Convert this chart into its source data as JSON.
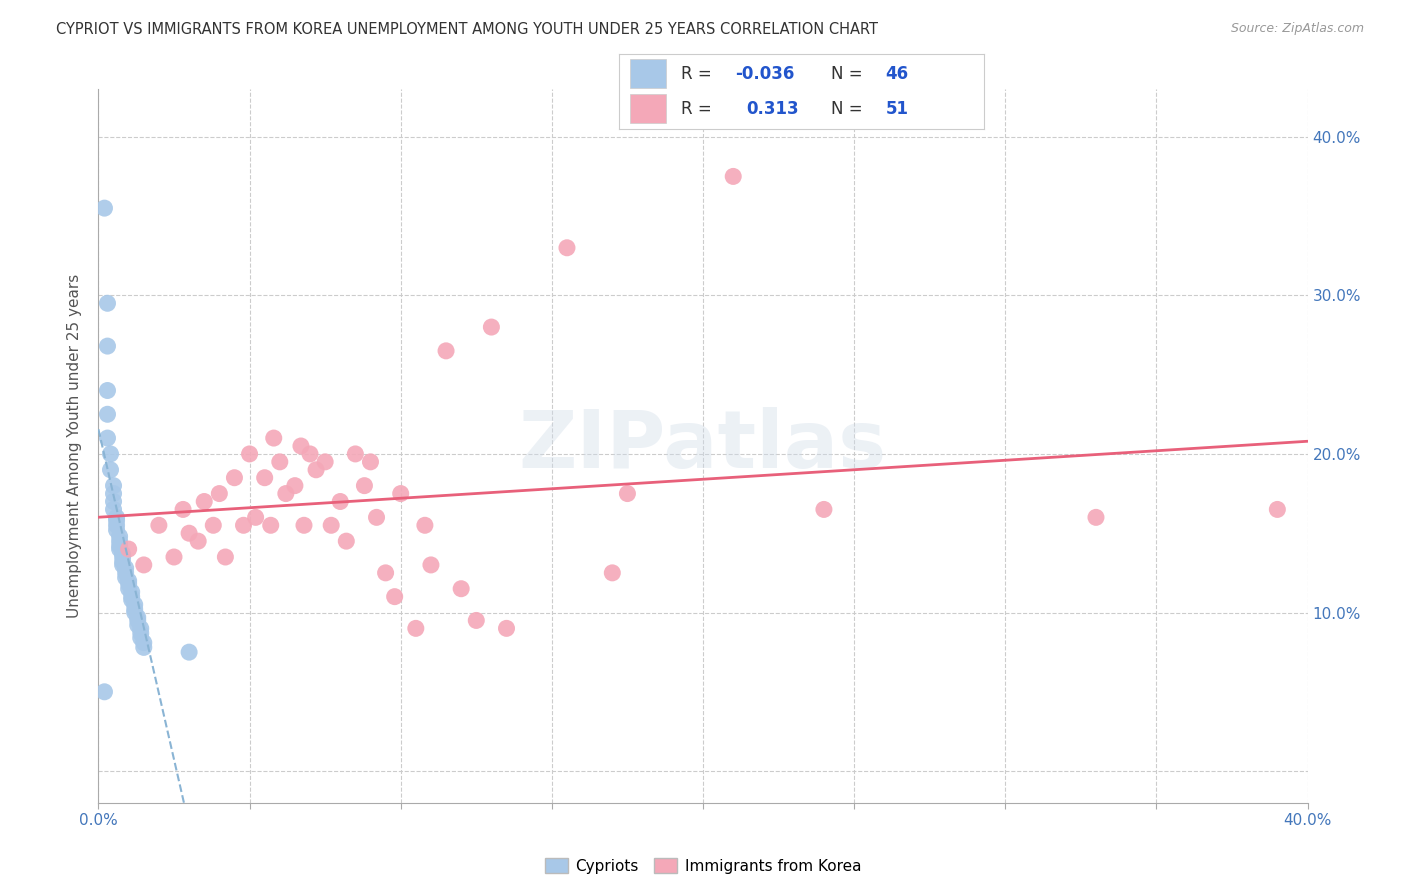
{
  "title": "CYPRIOT VS IMMIGRANTS FROM KOREA UNEMPLOYMENT AMONG YOUTH UNDER 25 YEARS CORRELATION CHART",
  "source": "Source: ZipAtlas.com",
  "ylabel": "Unemployment Among Youth under 25 years",
  "xlim": [
    0.0,
    0.4
  ],
  "ylim": [
    -0.02,
    0.43
  ],
  "yticks": [
    0.0,
    0.1,
    0.2,
    0.3,
    0.4
  ],
  "ytick_labels": [
    "",
    "10.0%",
    "20.0%",
    "30.0%",
    "40.0%"
  ],
  "xticks": [
    0.0,
    0.05,
    0.1,
    0.15,
    0.2,
    0.25,
    0.3,
    0.35,
    0.4
  ],
  "legend_r_cypriot": "-0.036",
  "legend_n_cypriot": "46",
  "legend_r_korea": "0.313",
  "legend_n_korea": "51",
  "cypriot_color": "#a8c8e8",
  "korea_color": "#f4a8b8",
  "cypriot_line_color": "#8ab4d4",
  "korea_line_color": "#e8607a",
  "watermark": "ZIPatlas",
  "cypriot_points": [
    [
      0.002,
      0.355
    ],
    [
      0.003,
      0.295
    ],
    [
      0.003,
      0.268
    ],
    [
      0.003,
      0.24
    ],
    [
      0.003,
      0.225
    ],
    [
      0.003,
      0.21
    ],
    [
      0.004,
      0.2
    ],
    [
      0.004,
      0.19
    ],
    [
      0.005,
      0.18
    ],
    [
      0.005,
      0.175
    ],
    [
      0.005,
      0.17
    ],
    [
      0.005,
      0.165
    ],
    [
      0.006,
      0.16
    ],
    [
      0.006,
      0.158
    ],
    [
      0.006,
      0.155
    ],
    [
      0.006,
      0.152
    ],
    [
      0.007,
      0.148
    ],
    [
      0.007,
      0.145
    ],
    [
      0.007,
      0.142
    ],
    [
      0.007,
      0.14
    ],
    [
      0.008,
      0.137
    ],
    [
      0.008,
      0.135
    ],
    [
      0.008,
      0.132
    ],
    [
      0.008,
      0.13
    ],
    [
      0.009,
      0.128
    ],
    [
      0.009,
      0.125
    ],
    [
      0.009,
      0.122
    ],
    [
      0.01,
      0.12
    ],
    [
      0.01,
      0.118
    ],
    [
      0.01,
      0.115
    ],
    [
      0.011,
      0.113
    ],
    [
      0.011,
      0.11
    ],
    [
      0.011,
      0.108
    ],
    [
      0.012,
      0.105
    ],
    [
      0.012,
      0.102
    ],
    [
      0.012,
      0.1
    ],
    [
      0.013,
      0.097
    ],
    [
      0.013,
      0.095
    ],
    [
      0.013,
      0.092
    ],
    [
      0.014,
      0.09
    ],
    [
      0.014,
      0.087
    ],
    [
      0.014,
      0.084
    ],
    [
      0.015,
      0.081
    ],
    [
      0.015,
      0.078
    ],
    [
      0.03,
      0.075
    ],
    [
      0.002,
      0.05
    ]
  ],
  "korea_points": [
    [
      0.01,
      0.14
    ],
    [
      0.015,
      0.13
    ],
    [
      0.02,
      0.155
    ],
    [
      0.025,
      0.135
    ],
    [
      0.028,
      0.165
    ],
    [
      0.03,
      0.15
    ],
    [
      0.033,
      0.145
    ],
    [
      0.035,
      0.17
    ],
    [
      0.038,
      0.155
    ],
    [
      0.04,
      0.175
    ],
    [
      0.042,
      0.135
    ],
    [
      0.045,
      0.185
    ],
    [
      0.048,
      0.155
    ],
    [
      0.05,
      0.2
    ],
    [
      0.052,
      0.16
    ],
    [
      0.055,
      0.185
    ],
    [
      0.057,
      0.155
    ],
    [
      0.058,
      0.21
    ],
    [
      0.06,
      0.195
    ],
    [
      0.062,
      0.175
    ],
    [
      0.065,
      0.18
    ],
    [
      0.067,
      0.205
    ],
    [
      0.068,
      0.155
    ],
    [
      0.07,
      0.2
    ],
    [
      0.072,
      0.19
    ],
    [
      0.075,
      0.195
    ],
    [
      0.077,
      0.155
    ],
    [
      0.08,
      0.17
    ],
    [
      0.082,
      0.145
    ],
    [
      0.085,
      0.2
    ],
    [
      0.088,
      0.18
    ],
    [
      0.09,
      0.195
    ],
    [
      0.092,
      0.16
    ],
    [
      0.095,
      0.125
    ],
    [
      0.098,
      0.11
    ],
    [
      0.1,
      0.175
    ],
    [
      0.105,
      0.09
    ],
    [
      0.108,
      0.155
    ],
    [
      0.11,
      0.13
    ],
    [
      0.115,
      0.265
    ],
    [
      0.12,
      0.115
    ],
    [
      0.125,
      0.095
    ],
    [
      0.13,
      0.28
    ],
    [
      0.135,
      0.09
    ],
    [
      0.155,
      0.33
    ],
    [
      0.17,
      0.125
    ],
    [
      0.175,
      0.175
    ],
    [
      0.21,
      0.375
    ],
    [
      0.24,
      0.165
    ],
    [
      0.33,
      0.16
    ],
    [
      0.39,
      0.165
    ]
  ]
}
